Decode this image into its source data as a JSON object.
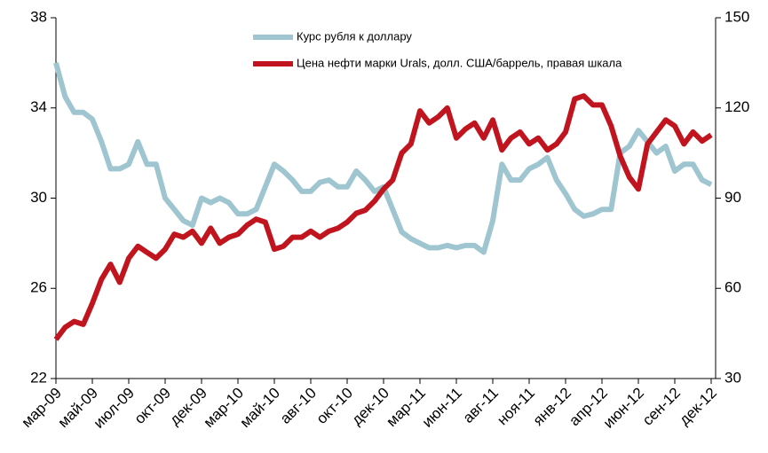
{
  "chart_data": {
    "type": "line",
    "categories": [
      "мар-09",
      null,
      null,
      null,
      "май-09",
      null,
      null,
      null,
      "июл-09",
      null,
      null,
      null,
      "окт-09",
      null,
      null,
      null,
      "дек-09",
      null,
      null,
      null,
      "мар-10",
      null,
      null,
      null,
      "май-10",
      null,
      null,
      null,
      "авг-10",
      null,
      null,
      null,
      "окт-10",
      null,
      null,
      null,
      "дек-10",
      null,
      null,
      null,
      "мар-11",
      null,
      null,
      null,
      "июн-11",
      null,
      null,
      null,
      "авг-11",
      null,
      null,
      null,
      "ноя-11",
      null,
      null,
      null,
      "янв-12",
      null,
      null,
      null,
      "апр-12",
      null,
      null,
      null,
      "июн-12",
      null,
      null,
      null,
      "сен-12",
      null,
      null,
      null,
      "дек-12"
    ],
    "series": [
      {
        "name": "Курс рубля к доллару",
        "color": "#9ec5d0",
        "axis": "y",
        "values": [
          36,
          34.5,
          33.8,
          33.8,
          33.5,
          32.5,
          31.3,
          31.3,
          31.5,
          32.5,
          31.5,
          31.5,
          30,
          29.5,
          29,
          28.8,
          30,
          29.8,
          30,
          29.8,
          29.3,
          29.3,
          29.5,
          30.5,
          31.5,
          31.2,
          30.8,
          30.3,
          30.3,
          30.7,
          30.8,
          30.5,
          30.5,
          31.2,
          30.8,
          30.3,
          30.5,
          29.5,
          28.5,
          28.2,
          28,
          27.8,
          27.8,
          27.9,
          27.8,
          27.9,
          27.9,
          27.6,
          29,
          31.5,
          30.8,
          30.8,
          31.3,
          31.5,
          31.8,
          30.8,
          30.2,
          29.5,
          29.2,
          29.3,
          29.5,
          29.5,
          32,
          32.3,
          33,
          32.5,
          32,
          32.3,
          31.2,
          31.5,
          31.5,
          30.8,
          30.6
        ]
      },
      {
        "name": "Цена нефти марки Urals, долл. США/баррель, правая шкала",
        "color": "#c0151f",
        "axis": "y2",
        "values": [
          43,
          47,
          49,
          48,
          55,
          63,
          68,
          62,
          70,
          74,
          72,
          70,
          73,
          78,
          77,
          79,
          75,
          80,
          75,
          77,
          78,
          81,
          83,
          82,
          73,
          74,
          77,
          77,
          79,
          77,
          79,
          80,
          82,
          85,
          86,
          89,
          93,
          96,
          105,
          108,
          119,
          115,
          117,
          120,
          110,
          113,
          115,
          110,
          116,
          106,
          110,
          112,
          108,
          110,
          106,
          108,
          112,
          123,
          124,
          121,
          121,
          114,
          104,
          97,
          93,
          108,
          112,
          116,
          114,
          108,
          112,
          109,
          111
        ]
      }
    ],
    "ylim": [
      22,
      38
    ],
    "yticks": [
      22,
      26,
      30,
      34,
      38
    ],
    "y2lim": [
      30,
      150
    ],
    "y2ticks": [
      30,
      60,
      90,
      120,
      150
    ],
    "grid": false,
    "legend": "top"
  }
}
